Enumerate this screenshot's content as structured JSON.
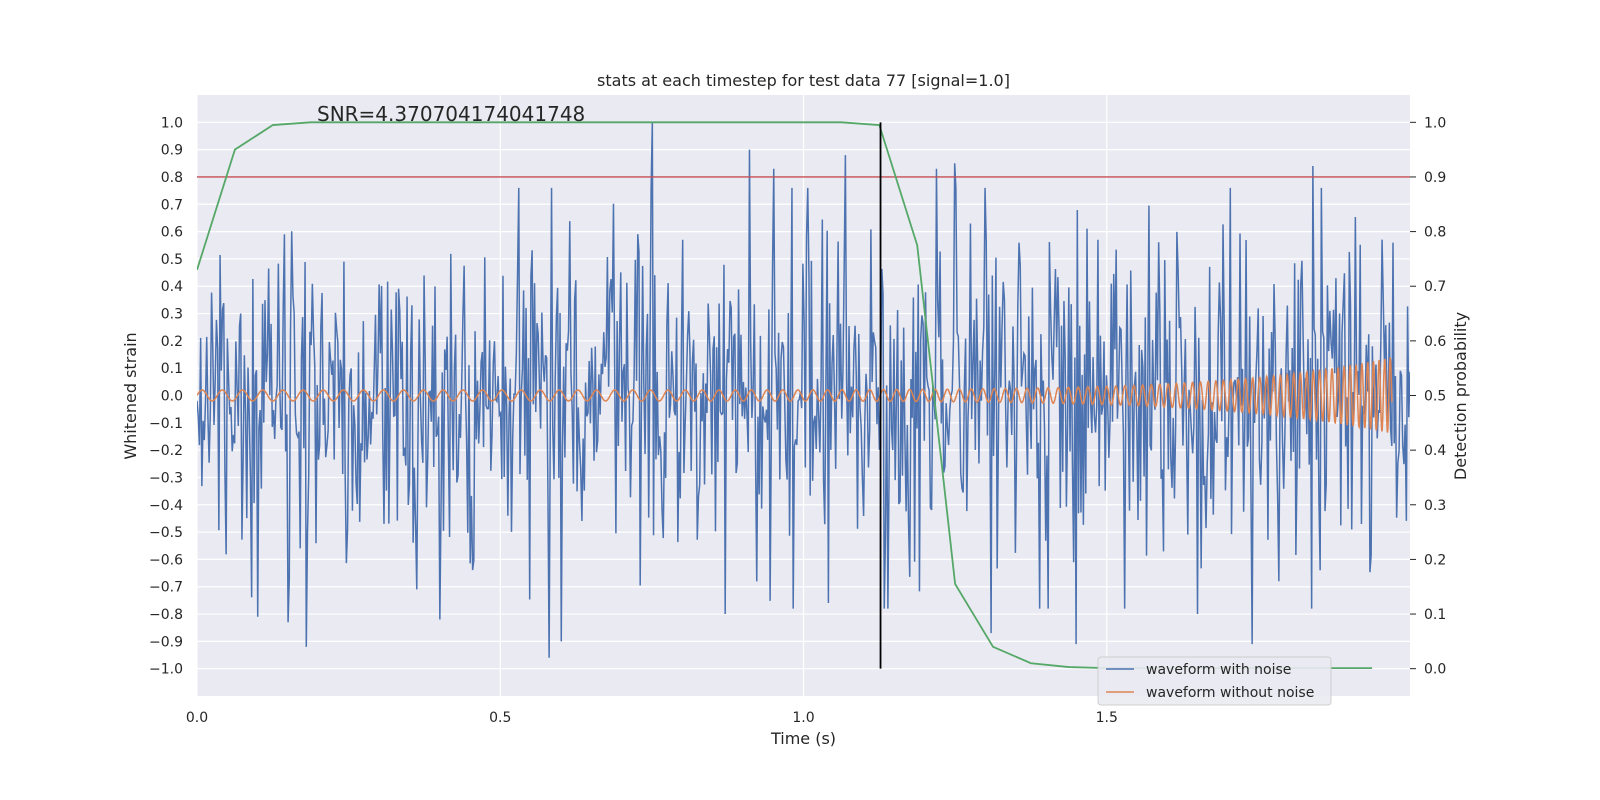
{
  "chart_data": {
    "type": "line",
    "title": "stats at each timestep for test data 77 [signal=1.0]",
    "xlabel": "Time (s)",
    "ylabel_left": "Whitened strain",
    "ylabel_right": "Detection probability",
    "annotation": "SNR=4.370704174041748",
    "xlim": [
      0.0,
      2.0
    ],
    "ylim_left": [
      -1.1,
      1.1
    ],
    "ylim_right": [
      -0.05,
      1.05
    ],
    "x_ticks": [
      0.0,
      0.5,
      1.0,
      1.5
    ],
    "x_tick_labels": [
      "0.0",
      "0.5",
      "1.0",
      "1.5"
    ],
    "y_left_ticks": [
      1.0,
      0.9,
      0.8,
      0.7,
      0.6,
      0.5,
      0.4,
      0.3,
      0.2,
      0.1,
      0.0,
      -0.1,
      -0.2,
      -0.3,
      -0.4,
      -0.5,
      -0.6,
      -0.7,
      -0.8,
      -0.9,
      -1.0
    ],
    "y_left_tick_labels": [
      "1.0",
      "0.9",
      "0.8",
      "0.7",
      "0.6",
      "0.5",
      "0.4",
      "0.3",
      "0.2",
      "0.1",
      "0.0",
      "−0.1",
      "−0.2",
      "−0.3",
      "−0.4",
      "−0.5",
      "−0.6",
      "−0.7",
      "−0.8",
      "−0.9",
      "−1.0"
    ],
    "y_right_ticks": [
      1.0,
      0.9,
      0.8,
      0.7,
      0.6,
      0.5,
      0.4,
      0.3,
      0.2,
      0.1,
      0.0
    ],
    "y_right_tick_labels": [
      "1.0",
      "0.9",
      "0.8",
      "0.7",
      "0.6",
      "0.5",
      "0.4",
      "0.3",
      "0.2",
      "0.1",
      "0.0"
    ],
    "grid": true,
    "legend_position": "bottom-right",
    "series": [
      {
        "name": "waveform with noise",
        "color": "#4c72b0",
        "axis": "left",
        "description_values": {
          "sample_count": 1000,
          "t_start": 0.0,
          "t_end": 2.0,
          "typical_amplitude": 0.3,
          "max": 1.0,
          "min": -0.96
        },
        "spikes": [
          [
            0.75,
            1.0
          ],
          [
            0.91,
            0.9
          ],
          [
            0.95,
            0.83
          ],
          [
            1.07,
            0.88
          ],
          [
            1.22,
            0.83
          ],
          [
            1.25,
            0.85
          ],
          [
            1.84,
            0.84
          ],
          [
            0.58,
            -0.96
          ],
          [
            0.6,
            -0.9
          ],
          [
            0.1,
            -0.81
          ],
          [
            0.15,
            -0.83
          ],
          [
            0.18,
            -0.92
          ],
          [
            0.4,
            -0.82
          ],
          [
            0.87,
            -0.8
          ],
          [
            1.31,
            -0.87
          ],
          [
            1.45,
            -0.91
          ],
          [
            1.74,
            -0.91
          ],
          [
            1.65,
            -0.8
          ]
        ]
      },
      {
        "name": "waveform without noise",
        "color": "#dd8452",
        "axis": "left",
        "chirp": {
          "f_start_hz": 30,
          "f_end_hz": 110,
          "amp_start": 0.02,
          "amp_end": 0.14,
          "t_end": 1.97
        }
      },
      {
        "name": "detection probability",
        "color": "#55a868",
        "axis": "right",
        "x": [
          0.0,
          0.0625,
          0.125,
          0.1875,
          0.25,
          0.3125,
          0.375,
          0.4375,
          0.5,
          0.5625,
          0.625,
          0.6875,
          0.75,
          0.8125,
          0.875,
          0.9375,
          1.0,
          1.0625,
          1.125,
          1.1875,
          1.25,
          1.3125,
          1.375,
          1.4375,
          1.5,
          1.5625,
          1.625,
          1.6875,
          1.75,
          1.8125,
          1.875,
          1.9375
        ],
        "values": [
          0.73,
          0.95,
          0.995,
          1.0,
          1.0,
          1.0,
          1.0,
          1.0,
          1.0,
          1.0,
          1.0,
          1.0,
          1.0,
          1.0,
          1.0,
          1.0,
          1.0,
          1.0,
          0.995,
          0.775,
          0.155,
          0.04,
          0.01,
          0.003,
          0.001,
          0.001,
          0.001,
          0.001,
          0.001,
          0.001,
          0.001,
          0.001
        ]
      }
    ],
    "threshold_line": {
      "axis": "right",
      "value": 0.9,
      "color": "#c44e52"
    },
    "vertical_line": {
      "x": 1.127,
      "color": "#000000"
    }
  }
}
